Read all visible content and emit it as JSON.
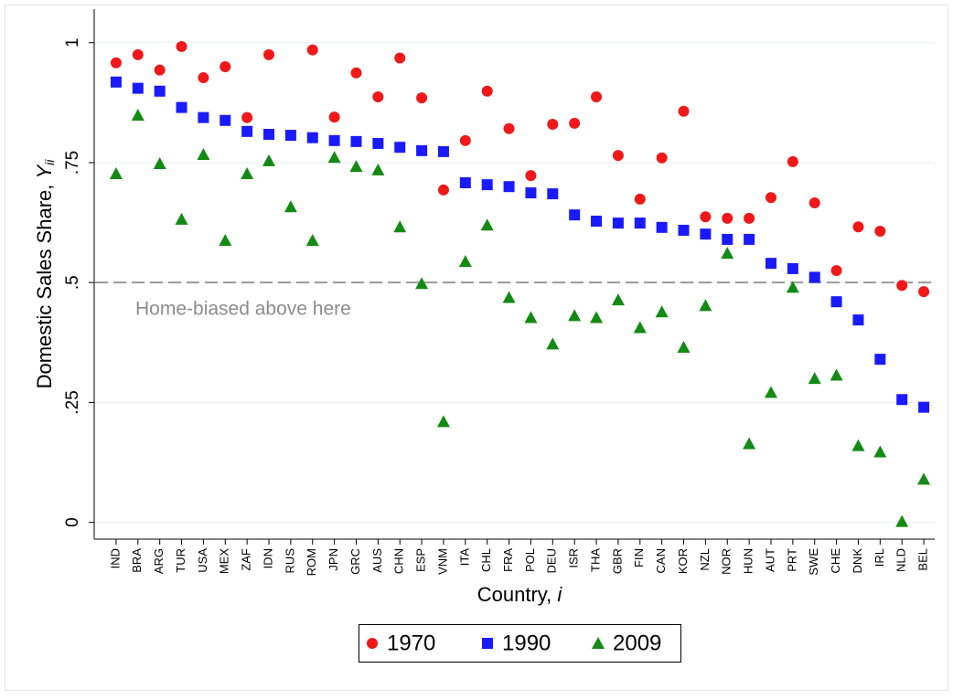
{
  "chart_data": {
    "type": "scatter",
    "y_label": "Domestic Sales Share, ",
    "y_label_symbol": "Y",
    "y_label_subscript": "ii",
    "x_label": "Country, ",
    "x_label_symbol": "i",
    "annotation": "Home-biased above here",
    "hline": 0.5,
    "categories": [
      "IND",
      "BRA",
      "ARG",
      "TUR",
      "USA",
      "MEX",
      "ZAF",
      "IDN",
      "RUS",
      "ROM",
      "JPN",
      "GRC",
      "AUS",
      "CHN",
      "ESP",
      "VNM",
      "ITA",
      "CHL",
      "FRA",
      "POL",
      "DEU",
      "ISR",
      "THA",
      "GBR",
      "FIN",
      "CAN",
      "KOR",
      "NZL",
      "NOR",
      "HUN",
      "AUT",
      "PRT",
      "SWE",
      "CHE",
      "DNK",
      "IRL",
      "NLD",
      "BEL"
    ],
    "series": [
      {
        "name": "1970",
        "color": "#f01818",
        "marker": "circle",
        "values": [
          0.958,
          0.975,
          0.943,
          0.992,
          0.927,
          0.95,
          0.844,
          0.975,
          null,
          0.985,
          0.845,
          0.937,
          0.887,
          0.968,
          0.885,
          0.693,
          0.796,
          0.899,
          0.821,
          0.723,
          0.83,
          0.832,
          0.887,
          0.765,
          0.674,
          0.76,
          0.857,
          0.637,
          0.634,
          0.634,
          0.677,
          0.752,
          0.666,
          0.525,
          0.616,
          0.607,
          0.494,
          0.481
        ]
      },
      {
        "name": "1990",
        "color": "#1a1aff",
        "marker": "square",
        "values": [
          0.918,
          0.905,
          0.899,
          0.865,
          0.844,
          0.838,
          0.815,
          0.809,
          0.807,
          0.802,
          0.796,
          0.794,
          0.79,
          0.782,
          0.775,
          0.773,
          0.708,
          0.704,
          0.7,
          0.687,
          0.685,
          0.641,
          0.628,
          0.624,
          0.624,
          0.615,
          0.609,
          0.601,
          0.59,
          0.59,
          0.54,
          0.529,
          0.511,
          0.46,
          0.422,
          0.34,
          0.256,
          0.24
        ]
      },
      {
        "name": "2009",
        "color": "#138a13",
        "marker": "triangle",
        "values": [
          0.727,
          0.849,
          0.748,
          0.632,
          0.767,
          0.588,
          0.727,
          0.754,
          0.658,
          0.588,
          0.761,
          0.742,
          0.735,
          0.616,
          0.498,
          0.21,
          0.544,
          0.62,
          0.469,
          0.427,
          0.372,
          0.431,
          0.427,
          0.464,
          0.406,
          0.439,
          0.365,
          0.452,
          0.561,
          0.164,
          0.271,
          0.49,
          0.3,
          0.307,
          0.16,
          0.147,
          0.002,
          0.09
        ]
      }
    ],
    "ylim": [
      -0.035,
      1.07
    ],
    "yticks": [
      0,
      {
        "value": 0.25,
        "label": ".25"
      },
      {
        "value": 0.5,
        "label": ".5"
      },
      {
        "value": 0.75,
        "label": ".75"
      },
      1
    ],
    "grid": true,
    "legend": "bottom"
  }
}
